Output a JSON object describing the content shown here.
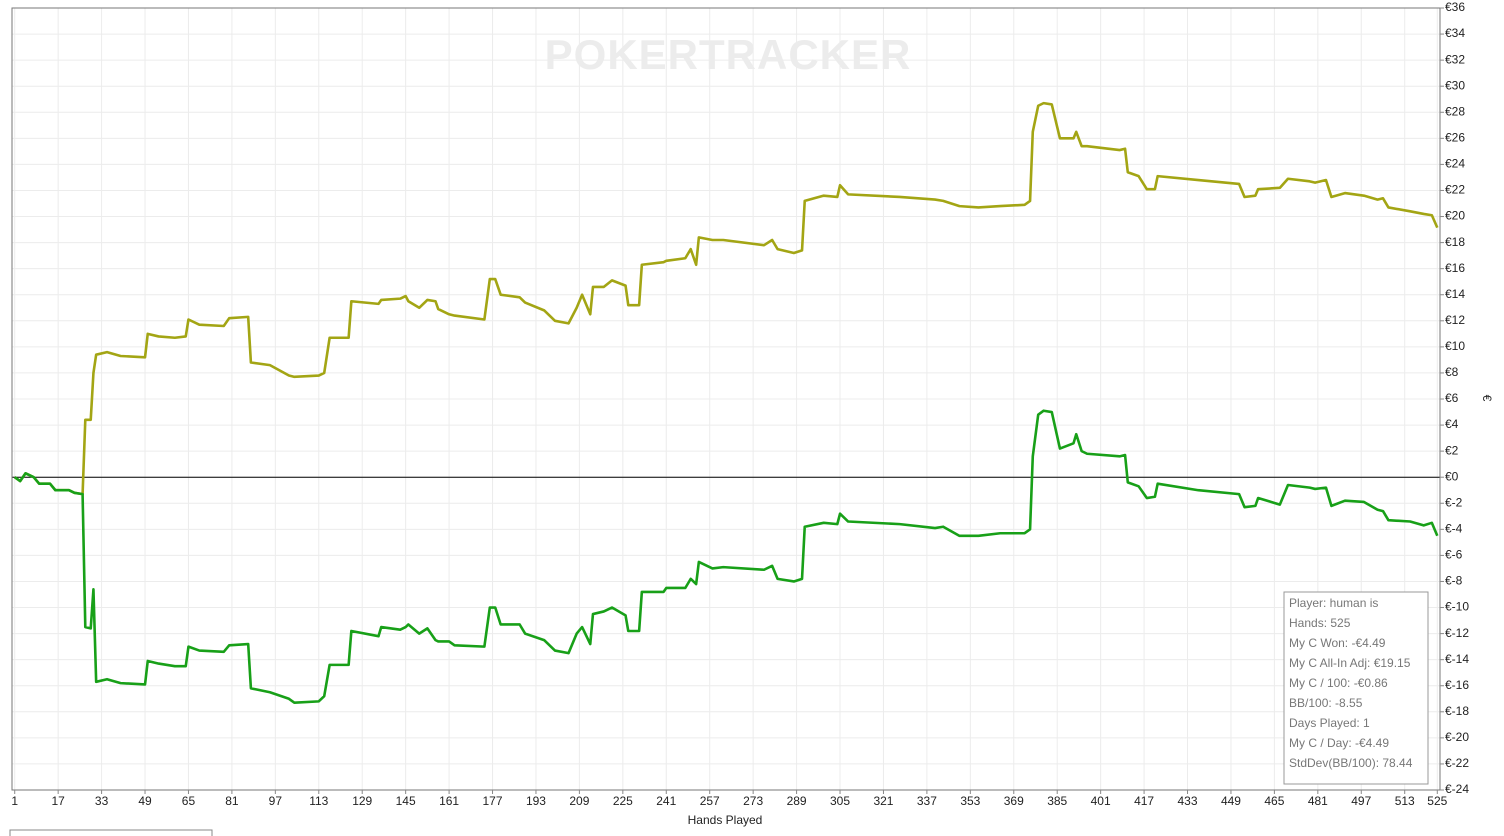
{
  "chart_data": {
    "type": "line",
    "watermark": "POKERTRACKER",
    "x_label": "Hands Played",
    "y_label": "€",
    "grid": true,
    "annotations": [
      "Player: human is",
      "Hands: 525",
      "My C Won: -€4.49",
      "My C All-In Adj: €19.15",
      "My C / 100: -€0.86",
      "BB/100: -8.55",
      "Days Played: 1",
      "My C / Day: -€4.49",
      "StdDev(BB/100): 78.44"
    ],
    "xlim": [
      0,
      526
    ],
    "xticks": [
      1,
      17,
      33,
      49,
      65,
      81,
      97,
      113,
      129,
      145,
      161,
      177,
      193,
      209,
      225,
      241,
      257,
      273,
      289,
      305,
      321,
      337,
      353,
      369,
      385,
      401,
      417,
      433,
      449,
      465,
      481,
      497,
      513,
      525
    ],
    "ylim": [
      -24,
      36
    ],
    "yticks": [
      {
        "value": -24,
        "label": "€-24"
      },
      {
        "value": -22,
        "label": "€-22"
      },
      {
        "value": -20,
        "label": "€-20"
      },
      {
        "value": -18,
        "label": "€-18"
      },
      {
        "value": -16,
        "label": "€-16"
      },
      {
        "value": -14,
        "label": "€-14"
      },
      {
        "value": -12,
        "label": "€-12"
      },
      {
        "value": -10,
        "label": "€-10"
      },
      {
        "value": -8,
        "label": "€-8"
      },
      {
        "value": -6,
        "label": "€-6"
      },
      {
        "value": -4,
        "label": "€-4"
      },
      {
        "value": -2,
        "label": "€-2"
      },
      {
        "value": 0,
        "label": "€0"
      },
      {
        "value": 2,
        "label": "€2"
      },
      {
        "value": 4,
        "label": "€4"
      },
      {
        "value": 6,
        "label": "€6"
      },
      {
        "value": 8,
        "label": "€8"
      },
      {
        "value": 10,
        "label": "€10"
      },
      {
        "value": 12,
        "label": "€12"
      },
      {
        "value": 14,
        "label": "€14"
      },
      {
        "value": 16,
        "label": "€16"
      },
      {
        "value": 18,
        "label": "€18"
      },
      {
        "value": 20,
        "label": "€20"
      },
      {
        "value": 22,
        "label": "€22"
      },
      {
        "value": 24,
        "label": "€24"
      },
      {
        "value": 26,
        "label": "€26"
      },
      {
        "value": 28,
        "label": "€28"
      },
      {
        "value": 30,
        "label": "€30"
      },
      {
        "value": 32,
        "label": "€32"
      },
      {
        "value": 34,
        "label": "€34"
      },
      {
        "value": 36,
        "label": "€36"
      }
    ],
    "x": [
      1,
      3,
      5,
      8,
      10,
      14,
      16,
      21,
      23,
      26,
      27,
      29,
      30,
      31,
      35,
      40,
      49,
      50,
      54,
      60,
      64,
      65,
      69,
      78,
      80,
      87,
      88,
      95,
      102,
      104,
      113,
      115,
      117,
      124,
      125,
      135,
      136,
      143,
      145,
      146,
      150,
      153,
      156,
      157,
      161,
      163,
      174,
      176,
      178,
      180,
      187,
      189,
      196,
      200,
      205,
      208,
      210,
      213,
      214,
      218,
      221,
      226,
      227,
      231,
      232,
      240,
      241,
      248,
      250,
      252,
      253,
      258,
      262,
      277,
      280,
      282,
      288,
      291,
      292,
      299,
      304,
      305,
      308,
      327,
      340,
      343,
      349,
      356,
      364,
      373,
      375,
      376,
      378,
      380,
      383,
      386,
      391,
      392,
      394,
      396,
      408,
      410,
      411,
      415,
      418,
      421,
      422,
      437,
      452,
      454,
      458,
      459,
      467,
      470,
      478,
      480,
      484,
      486,
      491,
      498,
      503,
      505,
      507,
      515,
      520,
      523,
      525
    ],
    "series": [
      {
        "color": "#a3a514",
        "values": [
          0,
          -0.3,
          0.3,
          0,
          -0.5,
          -0.5,
          -1.0,
          -1.0,
          -1.2,
          -1.3,
          4.4,
          4.4,
          8.0,
          9.4,
          9.6,
          9.3,
          9.2,
          11.0,
          10.8,
          10.7,
          10.8,
          12.1,
          11.7,
          11.6,
          12.2,
          12.3,
          8.8,
          8.6,
          7.8,
          7.7,
          7.8,
          8.0,
          10.7,
          10.7,
          13.5,
          13.3,
          13.6,
          13.7,
          13.9,
          13.5,
          13.0,
          13.6,
          13.5,
          12.9,
          12.5,
          12.4,
          12.1,
          15.2,
          15.2,
          14.0,
          13.8,
          13.4,
          12.8,
          12.0,
          11.8,
          13.0,
          14.0,
          12.5,
          14.6,
          14.6,
          15.1,
          14.7,
          13.2,
          13.2,
          16.3,
          16.5,
          16.6,
          16.8,
          17.5,
          16.3,
          18.4,
          18.2,
          18.2,
          17.8,
          18.2,
          17.5,
          17.2,
          17.4,
          21.2,
          21.6,
          21.5,
          22.4,
          21.7,
          21.5,
          21.3,
          21.2,
          20.8,
          20.7,
          20.8,
          20.9,
          21.2,
          26.5,
          28.5,
          28.7,
          28.6,
          26.0,
          26.0,
          26.5,
          25.4,
          25.4,
          25.1,
          25.2,
          23.4,
          23.1,
          22.1,
          22.1,
          23.1,
          22.8,
          22.5,
          21.5,
          21.6,
          22.1,
          22.2,
          22.9,
          22.7,
          22.6,
          22.8,
          21.5,
          21.8,
          21.6,
          21.3,
          21.4,
          20.7,
          20.4,
          20.2,
          20.1,
          19.15
        ]
      },
      {
        "color": "#18a018",
        "values": [
          0,
          -0.3,
          0.3,
          0,
          -0.5,
          -0.5,
          -1.0,
          -1.0,
          -1.2,
          -1.3,
          -11.5,
          -11.6,
          -8.6,
          -15.7,
          -15.5,
          -15.8,
          -15.9,
          -14.1,
          -14.3,
          -14.5,
          -14.5,
          -13.0,
          -13.3,
          -13.4,
          -12.9,
          -12.8,
          -16.2,
          -16.5,
          -17.0,
          -17.3,
          -17.2,
          -16.8,
          -14.4,
          -14.4,
          -11.8,
          -12.2,
          -11.5,
          -11.7,
          -11.5,
          -11.3,
          -12.0,
          -11.6,
          -12.5,
          -12.6,
          -12.6,
          -12.9,
          -13.0,
          -10.0,
          -10.0,
          -11.3,
          -11.3,
          -12.0,
          -12.5,
          -13.3,
          -13.5,
          -12.0,
          -11.5,
          -12.8,
          -10.5,
          -10.3,
          -10.0,
          -10.6,
          -11.8,
          -11.8,
          -8.8,
          -8.8,
          -8.5,
          -8.5,
          -7.8,
          -8.2,
          -6.5,
          -7.0,
          -6.9,
          -7.1,
          -6.8,
          -7.8,
          -8.0,
          -7.8,
          -3.8,
          -3.5,
          -3.6,
          -2.8,
          -3.4,
          -3.6,
          -3.9,
          -3.8,
          -4.5,
          -4.5,
          -4.3,
          -4.3,
          -4.0,
          1.6,
          4.8,
          5.1,
          5.0,
          2.2,
          2.6,
          3.3,
          2.0,
          1.8,
          1.6,
          1.7,
          -0.4,
          -0.7,
          -1.6,
          -1.5,
          -0.5,
          -1.0,
          -1.3,
          -2.3,
          -2.2,
          -1.6,
          -2.1,
          -0.6,
          -0.8,
          -0.9,
          -0.8,
          -2.2,
          -1.8,
          -1.9,
          -2.5,
          -2.6,
          -3.3,
          -3.4,
          -3.7,
          -3.5,
          -4.49
        ]
      }
    ]
  }
}
